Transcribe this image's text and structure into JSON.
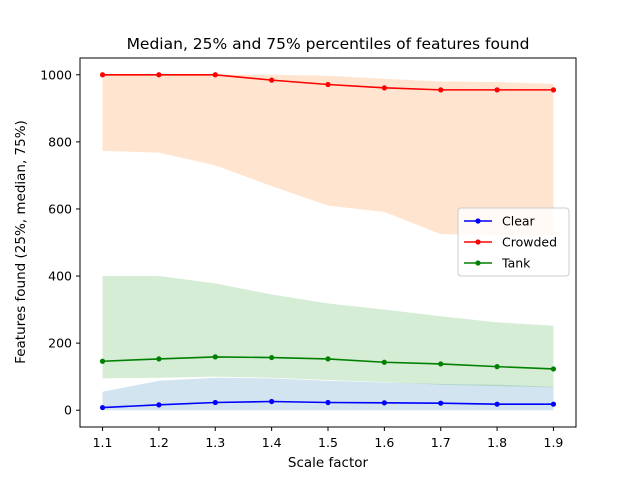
{
  "chart_data": {
    "type": "line",
    "title": "Median, 25% and 75% percentiles of features found",
    "xlabel": "Scale factor",
    "ylabel": "Features found (25%, median, 75%)",
    "x": [
      1.1,
      1.2,
      1.3,
      1.4,
      1.5,
      1.6,
      1.7,
      1.8,
      1.9
    ],
    "xticks": [
      "1.1",
      "1.2",
      "1.3",
      "1.4",
      "1.5",
      "1.6",
      "1.7",
      "1.8",
      "1.9"
    ],
    "yticks": [
      0,
      200,
      400,
      600,
      800,
      1000
    ],
    "xlim": [
      1.06,
      1.94
    ],
    "ylim": [
      -50,
      1050
    ],
    "grid": false,
    "legend_position": "center-right",
    "series": [
      {
        "name": "Clear",
        "color": "#0000ff",
        "band_color": "#1f77b4",
        "median": [
          8,
          16,
          23,
          26,
          23,
          22,
          21,
          18,
          18
        ],
        "p25": [
          0,
          0,
          0,
          0,
          0,
          0,
          0,
          0,
          0
        ],
        "p75": [
          55,
          88,
          97,
          95,
          88,
          83,
          78,
          76,
          70
        ]
      },
      {
        "name": "Crowded",
        "color": "#ff0000",
        "band_color": "#ff7f0e",
        "median": [
          1000,
          1000,
          1000,
          984,
          971,
          961,
          955,
          955,
          955
        ],
        "p25": [
          773,
          768,
          730,
          668,
          610,
          591,
          525,
          522,
          520
        ],
        "p75": [
          1000,
          1000,
          1000,
          1000,
          997,
          988,
          980,
          978,
          973
        ]
      },
      {
        "name": "Tank",
        "color": "#008000",
        "band_color": "#2ca02c",
        "median": [
          146,
          153,
          159,
          157,
          153,
          143,
          138,
          130,
          123
        ],
        "p25": [
          95,
          97,
          100,
          97,
          90,
          84,
          76,
          72,
          68
        ],
        "p75": [
          400,
          400,
          378,
          345,
          318,
          300,
          280,
          262,
          252
        ]
      }
    ]
  }
}
